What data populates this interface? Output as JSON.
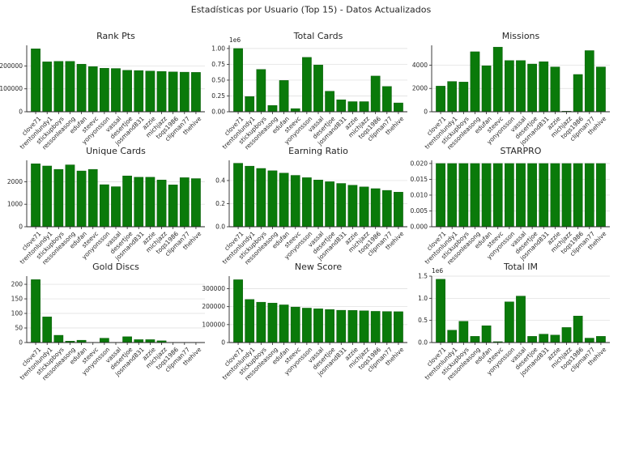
{
  "figure_title": "Estadísticas por Usuario (Top 15) - Datos Actualizados",
  "colors": {
    "bar": "#0a7a0a",
    "bar_edge": "#065206",
    "grid": "#dcdcdc",
    "axis": "#262626"
  },
  "chart_data": [
    {
      "type": "bar",
      "title": "Rank Pts",
      "grid": true,
      "ylim": [
        0,
        290000
      ],
      "yticks": [
        0,
        100000,
        200000
      ],
      "ytick_labels": [
        "0",
        "100000",
        "200000"
      ],
      "y_multiplier": "",
      "categories": [
        "clove71",
        "trentonlundy1",
        "stickupboys",
        "ressonleasong",
        "edufan",
        "steevc",
        "yonyonsson",
        "vassal",
        "desertjoe",
        "josmand831",
        "azzie",
        "michjazz",
        "toqs1986",
        "clipman77",
        "thehive"
      ],
      "values": [
        275000,
        218000,
        220000,
        220000,
        208000,
        197000,
        190000,
        189000,
        181000,
        180000,
        178000,
        176000,
        174000,
        173000,
        172000
      ]
    },
    {
      "type": "bar",
      "title": "Total Cards",
      "grid": true,
      "ylim": [
        0,
        1050000
      ],
      "yticks": [
        0,
        250000,
        500000,
        750000,
        1000000
      ],
      "ytick_labels": [
        "0.00",
        "0.25",
        "0.50",
        "0.75",
        "1.00"
      ],
      "y_multiplier": "1e6",
      "categories": [
        "clove71",
        "trentonlundy1",
        "stickupboys",
        "ressonleasong",
        "edufan",
        "steevc",
        "yonyonsson",
        "vassal",
        "desertjoe",
        "josmand831",
        "azzie",
        "michjazz",
        "toqs1986",
        "clipman77",
        "thehive"
      ],
      "values": [
        1000000,
        240000,
        670000,
        100000,
        495000,
        50000,
        860000,
        740000,
        325000,
        190000,
        160000,
        160000,
        565000,
        400000,
        140000
      ]
    },
    {
      "type": "bar",
      "title": "Missions",
      "grid": true,
      "ylim": [
        0,
        5700
      ],
      "yticks": [
        0,
        2000,
        4000
      ],
      "ytick_labels": [
        "0",
        "2000",
        "4000"
      ],
      "y_multiplier": "",
      "categories": [
        "clove71",
        "trentonlundy1",
        "stickupboys",
        "ressonleasong",
        "edufan",
        "steevc",
        "yonyonsson",
        "vassal",
        "desertjoe",
        "josmand831",
        "azzie",
        "michjazz",
        "toqs1986",
        "clipman77",
        "thehive"
      ],
      "values": [
        2200,
        2600,
        2550,
        5150,
        3950,
        5550,
        4400,
        4400,
        4100,
        4300,
        3850,
        50,
        3200,
        5250,
        3850
      ]
    },
    {
      "type": "bar",
      "title": "Unique Cards",
      "grid": true,
      "ylim": [
        0,
        2950
      ],
      "yticks": [
        0,
        1000,
        2000
      ],
      "ytick_labels": [
        "0",
        "1000",
        "2000"
      ],
      "y_multiplier": "",
      "categories": [
        "clove71",
        "trentonlundy1",
        "stickupboys",
        "ressonleasong",
        "edufan",
        "steevc",
        "yonyonsson",
        "vassal",
        "desertjoe",
        "josmand831",
        "azzie",
        "michjazz",
        "toqs1986",
        "clipman77",
        "thehive"
      ],
      "values": [
        2800,
        2700,
        2550,
        2750,
        2480,
        2550,
        1870,
        1780,
        2260,
        2200,
        2200,
        2080,
        1860,
        2180,
        2140
      ]
    },
    {
      "type": "bar",
      "title": "Earning Ratio",
      "grid": true,
      "ylim": [
        0,
        0.575
      ],
      "yticks": [
        0,
        0.2,
        0.4
      ],
      "ytick_labels": [
        "0.0",
        "0.2",
        "0.4"
      ],
      "y_multiplier": "",
      "categories": [
        "clove71",
        "trentonlundy1",
        "stickupboys",
        "ressonleasong",
        "edufan",
        "steevc",
        "yonyonsson",
        "vassal",
        "desertjoe",
        "josmand831",
        "azzie",
        "michjazz",
        "toqs1986",
        "clipman77",
        "thehive"
      ],
      "values": [
        0.55,
        0.525,
        0.505,
        0.485,
        0.465,
        0.445,
        0.425,
        0.405,
        0.39,
        0.375,
        0.36,
        0.345,
        0.33,
        0.315,
        0.3
      ]
    },
    {
      "type": "bar",
      "title": "STARPRO",
      "grid": true,
      "ylim": [
        0,
        0.021
      ],
      "yticks": [
        0,
        0.005,
        0.01,
        0.015,
        0.02
      ],
      "ytick_labels": [
        "0.000",
        "0.005",
        "0.010",
        "0.015",
        "0.020"
      ],
      "y_multiplier": "",
      "categories": [
        "clove71",
        "trentonlundy1",
        "stickupboys",
        "ressonleasong",
        "edufan",
        "steevc",
        "yonyonsson",
        "vassal",
        "desertjoe",
        "josmand831",
        "azzie",
        "michjazz",
        "toqs1986",
        "clipman77",
        "thehive"
      ],
      "values": [
        0.02,
        0.02,
        0.02,
        0.02,
        0.02,
        0.02,
        0.02,
        0.02,
        0.02,
        0.02,
        0.02,
        0.02,
        0.02,
        0.02,
        0.02
      ]
    },
    {
      "type": "bar",
      "title": "Gold Discs",
      "grid": true,
      "ylim": [
        0,
        228
      ],
      "yticks": [
        0,
        50,
        100,
        150,
        200
      ],
      "ytick_labels": [
        "0",
        "50",
        "100",
        "150",
        "200"
      ],
      "y_multiplier": "",
      "categories": [
        "clove71",
        "trentonlundy1",
        "stickupboys",
        "ressonleasong",
        "edufan",
        "steevc",
        "yonyonsson",
        "vassal",
        "desertjoe",
        "josmand831",
        "azzie",
        "michjazz",
        "toqs1986",
        "clipman77",
        "thehive"
      ],
      "values": [
        216,
        88,
        25,
        5,
        8,
        0,
        15,
        0,
        20,
        10,
        10,
        6,
        0,
        0,
        0
      ]
    },
    {
      "type": "bar",
      "title": "New Score",
      "grid": true,
      "ylim": [
        0,
        370000
      ],
      "yticks": [
        0,
        100000,
        200000,
        300000
      ],
      "ytick_labels": [
        "0",
        "100000",
        "200000",
        "300000"
      ],
      "y_multiplier": "",
      "categories": [
        "clove71",
        "trentonlundy1",
        "stickupboys",
        "ressonleasong",
        "edufan",
        "steevc",
        "yonyonsson",
        "vassal",
        "desertjoe",
        "josmand831",
        "azzie",
        "michjazz",
        "toqs1986",
        "clipman77",
        "thehive"
      ],
      "values": [
        350000,
        240000,
        225000,
        220000,
        210000,
        198000,
        192000,
        188000,
        184000,
        180000,
        179000,
        177000,
        174000,
        173000,
        172000
      ]
    },
    {
      "type": "bar",
      "title": "Total IM",
      "grid": true,
      "ylim": [
        0,
        1500000
      ],
      "yticks": [
        0,
        500000,
        1000000,
        1500000
      ],
      "ytick_labels": [
        "0.0",
        "0.5",
        "1.0",
        "1.5"
      ],
      "y_multiplier": "1e6",
      "categories": [
        "clove71",
        "trentonlundy1",
        "stickupboys",
        "ressonleasong",
        "edufan",
        "steevc",
        "yonyonsson",
        "vassal",
        "desertjoe",
        "josmand831",
        "azzie",
        "michjazz",
        "toqs1986",
        "clipman77",
        "thehive"
      ],
      "values": [
        1430000,
        280000,
        480000,
        140000,
        380000,
        20000,
        920000,
        1050000,
        140000,
        190000,
        170000,
        340000,
        600000,
        100000,
        140000
      ]
    }
  ]
}
